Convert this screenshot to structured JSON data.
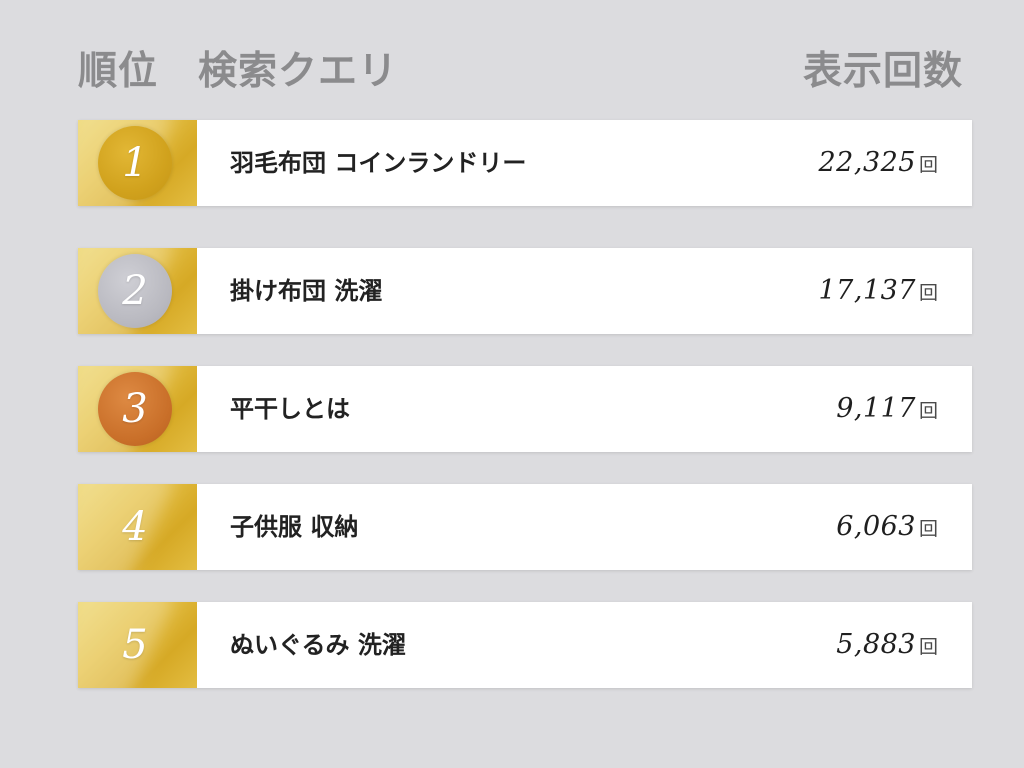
{
  "header": {
    "left": "順位　検索クエリ",
    "right": "表示回数"
  },
  "rows": [
    {
      "rank": "1",
      "query": "羽毛布団 コインランドリー",
      "count": "22,325",
      "unit": "回",
      "medal": "gold"
    },
    {
      "rank": "2",
      "query": "掛け布団 洗濯",
      "count": "17,137",
      "unit": "回",
      "medal": "silver"
    },
    {
      "rank": "3",
      "query": "平干しとは",
      "count": "9,117",
      "unit": "回",
      "medal": "bronze"
    },
    {
      "rank": "4",
      "query": "子供服 収納",
      "count": "6,063",
      "unit": "回",
      "medal": "none"
    },
    {
      "rank": "5",
      "query": "ぬいぐるみ 洗濯",
      "count": "5,883",
      "unit": "回",
      "medal": "none"
    }
  ],
  "colors": {
    "background": "#dcdcdf",
    "header_text": "#8b8b8d",
    "rank_gold": "#e5c146",
    "medal_gold": "#d1a21d",
    "medal_silver": "#b9b9c0",
    "medal_bronze": "#c96f29"
  }
}
